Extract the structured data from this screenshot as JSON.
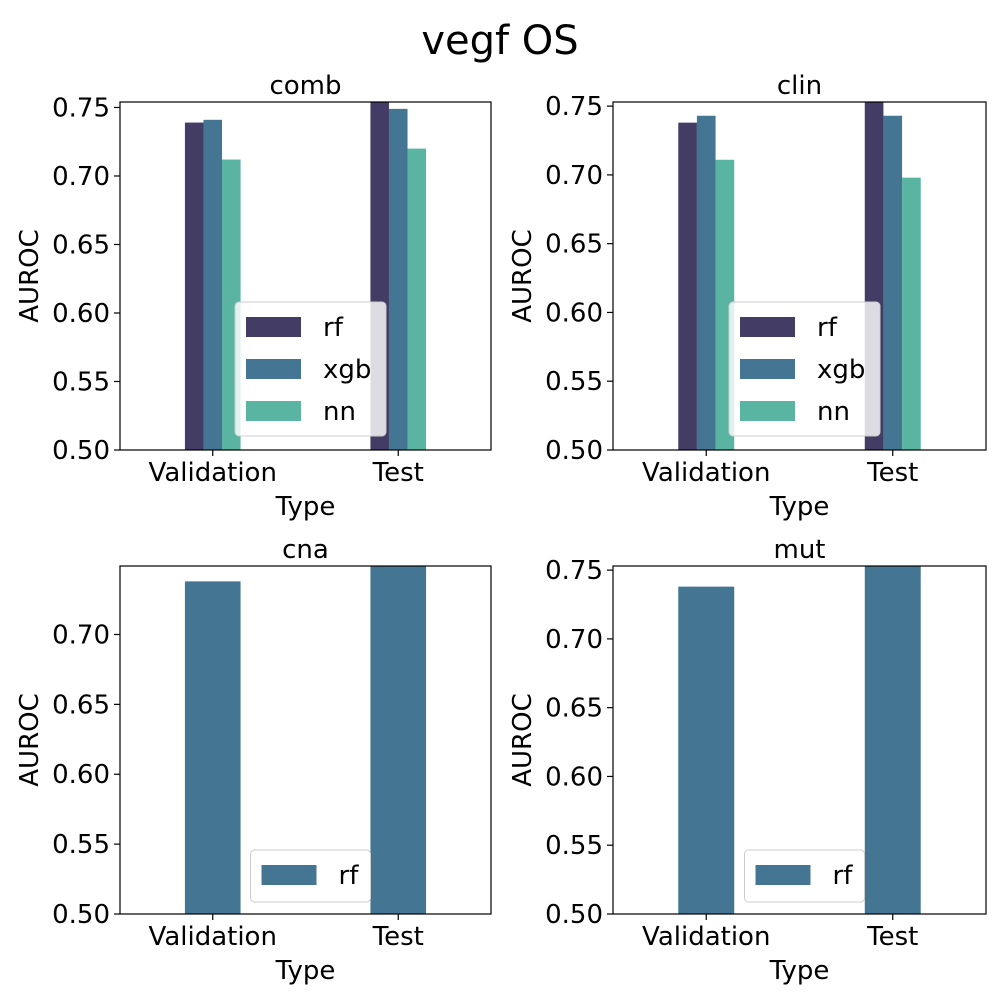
{
  "figure": {
    "suptitle": "vegf OS"
  },
  "colors": {
    "rf": "#433c64",
    "xgb": "#447593",
    "nn": "#5ab4a2",
    "single": "#447593"
  },
  "chart_data": [
    {
      "type": "bar",
      "title": "comb",
      "xlabel": "Type",
      "ylabel": "AUROC",
      "categories": [
        "Validation",
        "Test"
      ],
      "series": [
        {
          "name": "rf",
          "values": [
            0.739,
            0.754
          ]
        },
        {
          "name": "xgb",
          "values": [
            0.741,
            0.749
          ]
        },
        {
          "name": "nn",
          "values": [
            0.712,
            0.72
          ]
        }
      ],
      "ylim": [
        0.5,
        0.754
      ],
      "yticks": [
        "0.50",
        "0.55",
        "0.60",
        "0.65",
        "0.70",
        "0.75"
      ],
      "legend": "center",
      "grid": false
    },
    {
      "type": "bar",
      "title": "clin",
      "xlabel": "Type",
      "ylabel": "AUROC",
      "categories": [
        "Validation",
        "Test"
      ],
      "series": [
        {
          "name": "rf",
          "values": [
            0.738,
            0.753
          ]
        },
        {
          "name": "xgb",
          "values": [
            0.743,
            0.743
          ]
        },
        {
          "name": "nn",
          "values": [
            0.711,
            0.698
          ]
        }
      ],
      "ylim": [
        0.5,
        0.753
      ],
      "yticks": [
        "0.50",
        "0.55",
        "0.60",
        "0.65",
        "0.70",
        "0.75"
      ],
      "legend": "center",
      "grid": false
    },
    {
      "type": "bar",
      "title": "cna",
      "xlabel": "Type",
      "ylabel": "AUROC",
      "categories": [
        "Validation",
        "Test"
      ],
      "series": [
        {
          "name": "rf",
          "values": [
            0.738,
            0.749
          ]
        }
      ],
      "ylim": [
        0.5,
        0.749
      ],
      "yticks": [
        "0.50",
        "0.55",
        "0.60",
        "0.65",
        "0.70"
      ],
      "legend": "lower center",
      "grid": false
    },
    {
      "type": "bar",
      "title": "mut",
      "xlabel": "Type",
      "ylabel": "AUROC",
      "categories": [
        "Validation",
        "Test"
      ],
      "series": [
        {
          "name": "rf",
          "values": [
            0.738,
            0.753
          ]
        }
      ],
      "ylim": [
        0.5,
        0.753
      ],
      "yticks": [
        "0.50",
        "0.55",
        "0.60",
        "0.65",
        "0.70",
        "0.75"
      ],
      "legend": "lower center",
      "grid": false
    }
  ]
}
